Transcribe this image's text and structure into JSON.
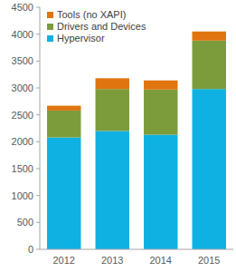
{
  "chart_data": {
    "type": "bar",
    "stacked": true,
    "grid": false,
    "legend": "upper left",
    "categories": [
      "2012",
      "2013",
      "2014",
      "2015"
    ],
    "series": [
      {
        "name": "Hypervisor",
        "color": "#0fb1e3",
        "values": [
          2080,
          2200,
          2130,
          2980
        ]
      },
      {
        "name": "Drivers and Devices",
        "color": "#7c9c3c",
        "values": [
          500,
          780,
          840,
          900
        ]
      },
      {
        "name": "Tools (no XAPI)",
        "color": "#e0740f",
        "values": [
          90,
          200,
          170,
          170
        ]
      }
    ],
    "ylim": [
      0,
      4500
    ],
    "yticks": [
      0,
      500,
      1000,
      1500,
      2000,
      2500,
      3000,
      3500,
      4000,
      4500
    ]
  }
}
